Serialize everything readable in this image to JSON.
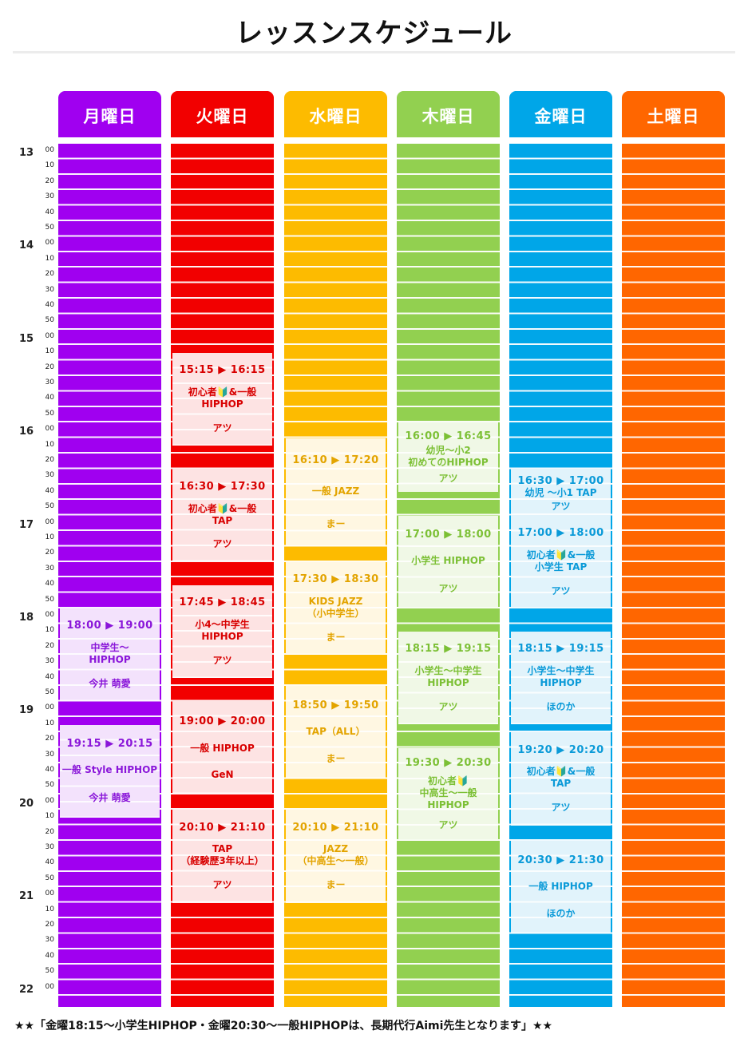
{
  "title": "レッスンスケジュール",
  "footer_note": "★★「金曜18:15～小学生HIPHOP・金曜20:30～一般HIPHOPは、長期代行Aimi先生となります」★★",
  "time_axis": {
    "hours": [
      "13",
      "14",
      "15",
      "16",
      "17",
      "18",
      "19",
      "20",
      "21",
      "22"
    ],
    "minutes": [
      "00",
      "10",
      "20",
      "30",
      "40",
      "50"
    ],
    "last_minute": "00"
  },
  "days": [
    {
      "label": "月曜日",
      "color": "#a000f0",
      "lesson_bg": "#f3e2fc",
      "text_color": "#8a16d9",
      "lessons": [
        {
          "start": "18:00",
          "end": "19:00",
          "time": "18:00 ▶ 19:00",
          "class": "中学生～\nHIPHOP",
          "teacher": "今井 萌愛"
        },
        {
          "start": "19:15",
          "end": "20:15",
          "time": "19:15 ▶ 20:15",
          "class": "一般 Style HIPHOP",
          "teacher": "今井 萌愛"
        }
      ]
    },
    {
      "label": "火曜日",
      "color": "#f20000",
      "lesson_bg": "#fde3e3",
      "text_color": "#d80000",
      "lessons": [
        {
          "start": "15:15",
          "end": "16:15",
          "time": "15:15 ▶ 16:15",
          "class": "初心者🔰&一般\nHIPHOP",
          "teacher": "アツ"
        },
        {
          "start": "16:30",
          "end": "17:30",
          "time": "16:30 ▶ 17:30",
          "class": "初心者🔰&一般\nTAP",
          "teacher": "アツ"
        },
        {
          "start": "17:45",
          "end": "18:45",
          "time": "17:45 ▶ 18:45",
          "class": "小4～中学生\nHIPHOP",
          "teacher": "アツ"
        },
        {
          "start": "19:00",
          "end": "20:00",
          "time": "19:00 ▶ 20:00",
          "class": "一般 HIPHOP",
          "teacher": "GeN"
        },
        {
          "start": "20:10",
          "end": "21:10",
          "time": "20:10 ▶ 21:10",
          "class": "TAP\n（経験歴3年以上）",
          "teacher": "アツ"
        }
      ]
    },
    {
      "label": "水曜日",
      "color": "#fdbb00",
      "lesson_bg": "#fff7e2",
      "text_color": "#e3a400",
      "lessons": [
        {
          "start": "16:10",
          "end": "17:20",
          "time": "16:10 ▶ 17:20",
          "class": "一般 JAZZ",
          "teacher": "まー"
        },
        {
          "start": "17:30",
          "end": "18:30",
          "time": "17:30 ▶ 18:30",
          "class": "KIDS JAZZ\n（小中学生）",
          "teacher": "まー"
        },
        {
          "start": "18:50",
          "end": "19:50",
          "time": "18:50 ▶ 19:50",
          "class": "TAP（ALL）",
          "teacher": "まー"
        },
        {
          "start": "20:10",
          "end": "21:10",
          "time": "20:10 ▶ 21:10",
          "class": "JAZZ\n（中高生～一般）",
          "teacher": "まー"
        }
      ]
    },
    {
      "label": "木曜日",
      "color": "#92d050",
      "lesson_bg": "#f0f8e6",
      "text_color": "#7cc035",
      "lessons": [
        {
          "start": "16:00",
          "end": "16:45",
          "time": "16:00 ▶ 16:45",
          "class": "幼児～小2\n初めてのHIPHOP",
          "teacher": "アツ"
        },
        {
          "start": "17:00",
          "end": "18:00",
          "time": "17:00 ▶ 18:00",
          "class": "小学生 HIPHOP",
          "teacher": "アツ"
        },
        {
          "start": "18:15",
          "end": "19:15",
          "time": "18:15 ▶ 19:15",
          "class": "小学生～中学生\nHIPHOP",
          "teacher": "アツ"
        },
        {
          "start": "19:30",
          "end": "20:30",
          "time": "19:30 ▶ 20:30",
          "class": "初心者🔰\n中高生～一般\nHIPHOP",
          "teacher": "アツ"
        }
      ]
    },
    {
      "label": "金曜日",
      "color": "#00a6e8",
      "lesson_bg": "#e1f3fb",
      "text_color": "#0a9ad8",
      "lessons": [
        {
          "start": "16:30",
          "end": "17:00",
          "time": "16:30 ▶ 17:00",
          "class": "幼児 ～小1 TAP",
          "teacher": "アツ"
        },
        {
          "start": "17:00",
          "end": "18:00",
          "time": "17:00 ▶ 18:00",
          "class": "初心者🔰&一般\n小学生 TAP",
          "teacher": "アツ"
        },
        {
          "start": "18:15",
          "end": "19:15",
          "time": "18:15 ▶ 19:15",
          "class": "小学生～中学生\nHIPHOP",
          "teacher": "ほのか"
        },
        {
          "start": "19:20",
          "end": "20:20",
          "time": "19:20 ▶ 20:20",
          "class": "初心者🔰&一般\nTAP",
          "teacher": "アツ"
        },
        {
          "start": "20:30",
          "end": "21:30",
          "time": "20:30 ▶ 21:30",
          "class": "一般 HIPHOP",
          "teacher": "ほのか"
        }
      ]
    },
    {
      "label": "土曜日",
      "color": "#ff6600",
      "lesson_bg": "#ffe9dc",
      "text_color": "#ff6600",
      "lessons": []
    }
  ]
}
